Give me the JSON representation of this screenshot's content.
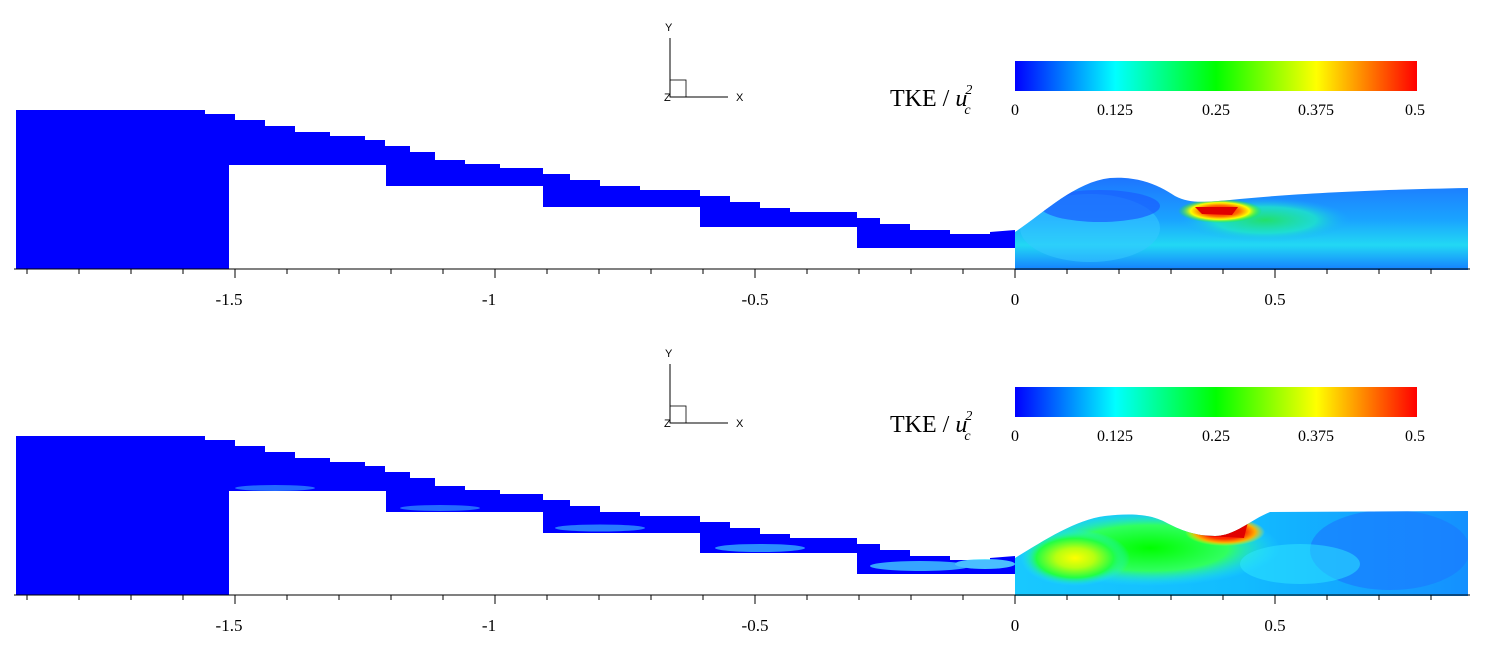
{
  "chart_data": [
    {
      "type": "heatmap",
      "panel": "top",
      "colorbar": {
        "title": "TKE / ",
        "title_var": "u",
        "title_sup": "2",
        "title_sub": "c",
        "ticks": [
          "0",
          "0.125",
          "0.25",
          "0.375",
          "0.5"
        ],
        "range": [
          0,
          0.5
        ],
        "colors": [
          "#0000ff",
          "#00ffff",
          "#00ff00",
          "#ffff00",
          "#ff0000"
        ]
      },
      "axes": {
        "x_label": "X",
        "y_label": "Y",
        "z_label": "Z"
      },
      "x_ticks": [
        "-1.5",
        "-1",
        "-0.5",
        "0",
        "0.5"
      ],
      "x_tick_values": [
        -1.5,
        -1,
        -0.5,
        0,
        0.5
      ],
      "xlim": [
        -1.92,
        0.87
      ]
    },
    {
      "type": "heatmap",
      "panel": "bottom",
      "colorbar": {
        "title": "TKE / ",
        "title_var": "u",
        "title_sup": "2",
        "title_sub": "c",
        "ticks": [
          "0",
          "0.125",
          "0.25",
          "0.375",
          "0.5"
        ],
        "range": [
          0,
          0.5
        ],
        "colors": [
          "#0000ff",
          "#00ffff",
          "#00ff00",
          "#ffff00",
          "#ff0000"
        ]
      },
      "axes": {
        "x_label": "X",
        "y_label": "Y",
        "z_label": "Z"
      },
      "x_ticks": [
        "-1.5",
        "-1",
        "-0.5",
        "0",
        "0.5"
      ],
      "x_tick_values": [
        -1.5,
        -1,
        -0.5,
        0,
        0.5
      ],
      "xlim": [
        -1.92,
        0.87
      ]
    }
  ]
}
